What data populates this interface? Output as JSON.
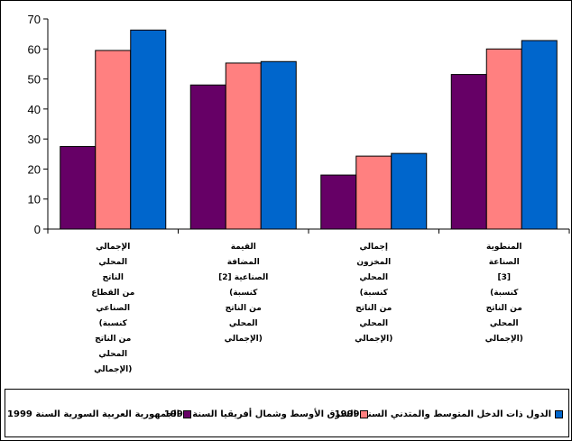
{
  "chart_data": {
    "type": "bar",
    "categories": [
      [
        "الإجمالي",
        "المحلي",
        "الناتج",
        "من القطاع",
        "الصناعي",
        "(كنسبة",
        "من الناتج",
        "المحلي",
        "الإجمالي)"
      ],
      [
        "القيمة",
        "المضافة",
        "الصناعية [2]",
        "(كنسبة",
        "من الناتج",
        "المحلي",
        "الإجمالي)"
      ],
      [
        "إجمالي",
        "المخزون",
        "المحلي",
        "(كنسبة",
        "من الناتج",
        "المحلي",
        "الإجمالي)"
      ],
      [
        "المنطوية",
        "الصناعة",
        "[3]",
        "(كنسبة",
        "من الناتج",
        "المحلي",
        "الإجمالي)"
      ]
    ],
    "series": [
      {
        "name": "الجمهورية العربية السورية السنة 1999",
        "values": [
          27.5,
          48,
          18,
          51.5
        ],
        "color": "#660066"
      },
      {
        "name": "الشرق الأوسط وشمال أفريقيا السنة 1999",
        "values": [
          59.5,
          55.3,
          24.3,
          60
        ],
        "color": "#ff8080"
      },
      {
        "name": "الدول ذات الدخل المتوسط والمتدني السنة 1999",
        "values": [
          66.3,
          55.8,
          25.2,
          62.8
        ],
        "color": "#0066cc"
      }
    ],
    "ylim": [
      0,
      70
    ],
    "yticks": [
      0,
      10,
      20,
      30,
      40,
      50,
      60,
      70
    ],
    "grid": false,
    "legend_position": "bottom"
  }
}
